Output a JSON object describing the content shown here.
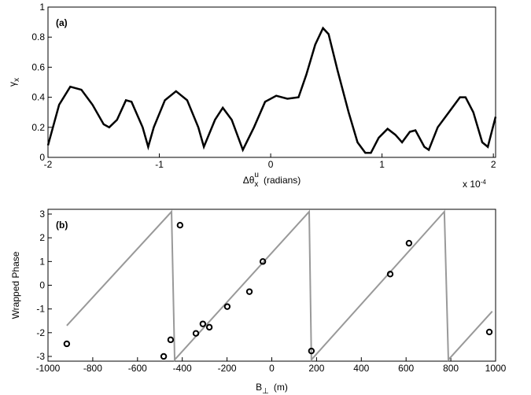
{
  "chart_data": [
    {
      "type": "line",
      "label": "(a)",
      "y_label": "γ",
      "y_label_sub": "x",
      "x_label": "Δθ",
      "x_label_sub": "x",
      "x_label_sup": "u",
      "x_label_unit": "(radians)",
      "x_multiplier": "x 10",
      "x_multiplier_exp": "-4",
      "xlim": [
        -2,
        2.02
      ],
      "ylim": [
        0,
        1
      ],
      "xticks": [
        -2,
        -1,
        0,
        1,
        2
      ],
      "yticks": [
        0,
        0.2,
        0.4,
        0.6,
        0.8,
        1
      ],
      "color": "#000000",
      "x": [
        -2,
        -1.9,
        -1.8,
        -1.7,
        -1.6,
        -1.5,
        -1.45,
        -1.38,
        -1.3,
        -1.25,
        -1.15,
        -1.1,
        -1.05,
        -0.95,
        -0.85,
        -0.75,
        -0.65,
        -0.6,
        -0.5,
        -0.43,
        -0.35,
        -0.25,
        -0.15,
        -0.05,
        0.05,
        0.15,
        0.25,
        0.32,
        0.4,
        0.47,
        0.52,
        0.6,
        0.7,
        0.78,
        0.85,
        0.9,
        0.97,
        1.05,
        1.12,
        1.18,
        1.25,
        1.3,
        1.38,
        1.42,
        1.5,
        1.6,
        1.7,
        1.75,
        1.82,
        1.9,
        1.95,
        2.02
      ],
      "values": [
        0.08,
        0.35,
        0.47,
        0.45,
        0.35,
        0.22,
        0.2,
        0.25,
        0.38,
        0.37,
        0.2,
        0.07,
        0.2,
        0.38,
        0.44,
        0.38,
        0.2,
        0.07,
        0.25,
        0.33,
        0.25,
        0.05,
        0.2,
        0.37,
        0.41,
        0.39,
        0.4,
        0.55,
        0.75,
        0.86,
        0.82,
        0.58,
        0.3,
        0.1,
        0.03,
        0.03,
        0.13,
        0.19,
        0.15,
        0.1,
        0.17,
        0.18,
        0.07,
        0.05,
        0.2,
        0.3,
        0.4,
        0.4,
        0.3,
        0.1,
        0.07,
        0.27
      ]
    },
    {
      "type": "scatter",
      "label": "(b)",
      "y_label": "Wrapped Phase",
      "x_label": "B",
      "x_label_sub": "⊥",
      "x_label_unit": "(m)",
      "xlim": [
        -1000,
        1000
      ],
      "ylim": [
        -3.2,
        3.2
      ],
      "xticks": [
        -1000,
        -800,
        -600,
        -400,
        -200,
        0,
        200,
        400,
        600,
        800,
        1000
      ],
      "yticks": [
        -3,
        -2,
        -1,
        0,
        1,
        2,
        3
      ],
      "series": [
        {
          "type": "line",
          "color": "#999999",
          "x": [
            -916,
            -448,
            -434,
            167,
            177,
            771,
            789,
            985
          ],
          "values": [
            -1.7,
            3.1,
            -3.14,
            3.1,
            -3.14,
            3.1,
            -3.14,
            -1.1
          ]
        },
        {
          "type": "scatter",
          "color": "#000000",
          "x": [
            -916,
            -452,
            -483,
            -410,
            -339,
            -308,
            -279,
            -199,
            -100,
            -40,
            177,
            529,
            613,
            972
          ],
          "values": [
            -2.47,
            -2.3,
            -3.0,
            2.53,
            -2.03,
            -1.63,
            -1.77,
            -0.9,
            -0.27,
            1.0,
            -2.77,
            0.47,
            1.77,
            -1.97
          ]
        }
      ]
    }
  ]
}
